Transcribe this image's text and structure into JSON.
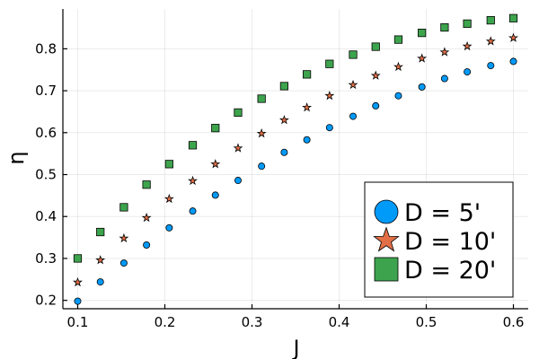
{
  "chart_data": {
    "type": "scatter",
    "title": "",
    "xlabel": "J",
    "ylabel": "η",
    "xlim": [
      0.083,
      0.617
    ],
    "ylim": [
      0.18,
      0.895
    ],
    "xticks": [
      0.1,
      0.2,
      0.3,
      0.4,
      0.5,
      0.6
    ],
    "xtick_labels": [
      "0.1",
      "0.2",
      "0.3",
      "0.4",
      "0.5",
      "0.6"
    ],
    "yticks": [
      0.2,
      0.3,
      0.4,
      0.5,
      0.6,
      0.7,
      0.8
    ],
    "ytick_labels": [
      "0.2",
      "0.3",
      "0.4",
      "0.5",
      "0.6",
      "0.7",
      "0.8"
    ],
    "grid": true,
    "legend": "bottom-right",
    "x": [
      0.1,
      0.126,
      0.153,
      0.179,
      0.205,
      0.232,
      0.258,
      0.284,
      0.311,
      0.337,
      0.363,
      0.389,
      0.416,
      0.442,
      0.468,
      0.495,
      0.521,
      0.547,
      0.574,
      0.6
    ],
    "series": [
      {
        "name": "D = 5'",
        "marker": "circle",
        "color": "#009af9",
        "values": [
          0.198,
          0.244,
          0.289,
          0.332,
          0.373,
          0.413,
          0.451,
          0.486,
          0.52,
          0.553,
          0.583,
          0.612,
          0.639,
          0.664,
          0.688,
          0.709,
          0.729,
          0.745,
          0.76,
          0.77
        ]
      },
      {
        "name": "D = 10'",
        "marker": "star",
        "color": "#e26f46",
        "values": [
          0.243,
          0.296,
          0.348,
          0.397,
          0.442,
          0.485,
          0.525,
          0.563,
          0.598,
          0.63,
          0.66,
          0.688,
          0.714,
          0.736,
          0.757,
          0.777,
          0.792,
          0.806,
          0.818,
          0.826
        ]
      },
      {
        "name": "D = 20'",
        "marker": "square",
        "color": "#3da44d",
        "values": [
          0.3,
          0.363,
          0.422,
          0.476,
          0.525,
          0.57,
          0.611,
          0.648,
          0.681,
          0.711,
          0.739,
          0.764,
          0.786,
          0.805,
          0.822,
          0.838,
          0.851,
          0.86,
          0.868,
          0.873
        ]
      }
    ]
  }
}
